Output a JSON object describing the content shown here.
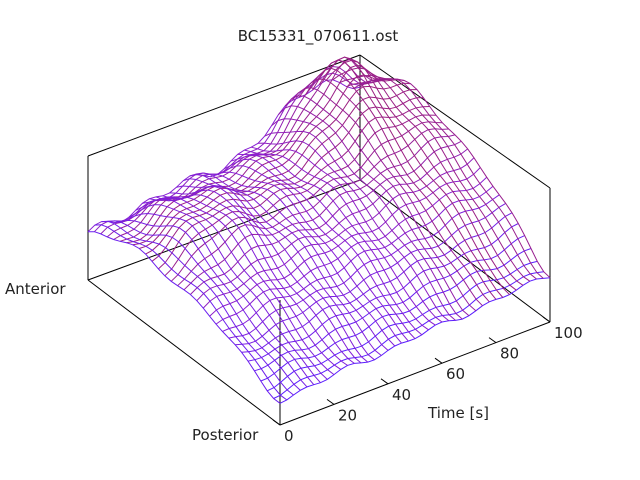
{
  "chart_data": {
    "type": "surface",
    "title": "BC15331_070611.ost",
    "xlabel": "Time [s]",
    "ylabel_front": "Posterior",
    "ylabel_back": "Anterior",
    "xlim": [
      0,
      100
    ],
    "x_ticks": [
      0,
      20,
      40,
      60,
      80,
      100
    ],
    "n_time_samples": 40,
    "n_depth_samples": 30,
    "grid": false,
    "colormap": [
      "#5a1eff",
      "#8b1fd0",
      "#a0206a",
      "#b8401a",
      "#e09a10"
    ],
    "surface_description": "Arched cross-section (anterior to posterior) that rises over time, with a pronounced peak near the posterior-late region and a bright ridge near early time."
  }
}
